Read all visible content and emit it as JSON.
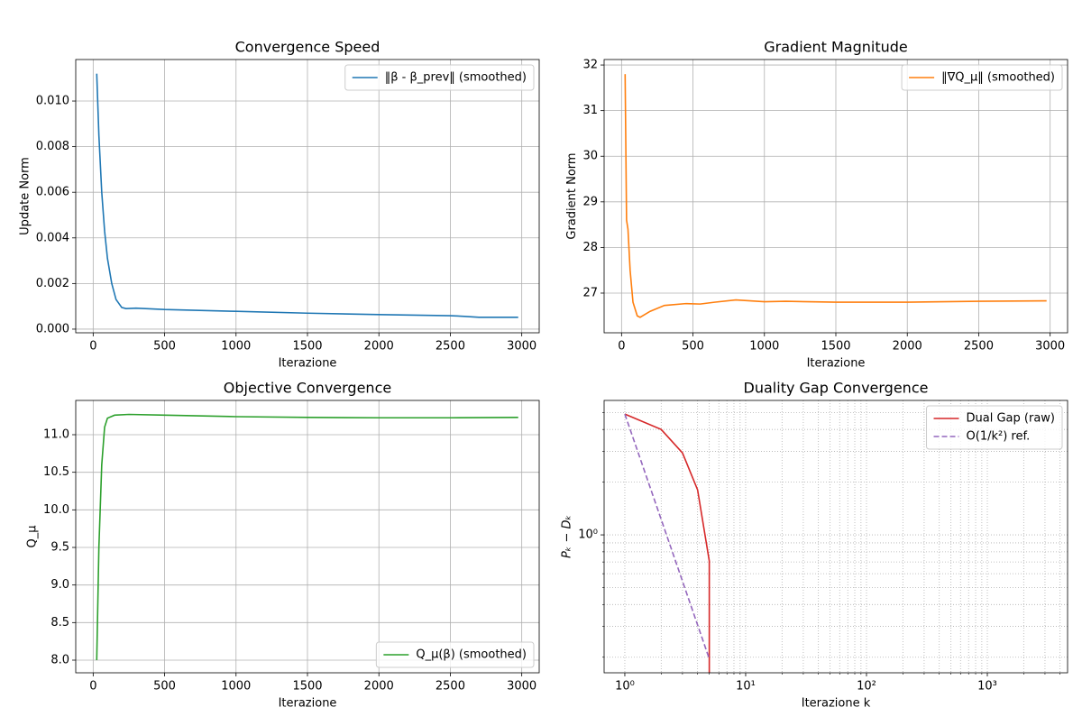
{
  "chart_data": [
    {
      "type": "line",
      "title": "Convergence Speed",
      "x_label": "Iterazione",
      "y_label": "Update Norm",
      "x": [
        25,
        40,
        60,
        80,
        100,
        130,
        160,
        200,
        230,
        300,
        500,
        1000,
        1500,
        2000,
        2500,
        2600,
        2700,
        2975
      ],
      "series": [
        {
          "name": "‖β - β_prev‖ (smoothed)",
          "color": "#1f77b4",
          "values": [
            0.0112,
            0.0085,
            0.006,
            0.0043,
            0.0031,
            0.002,
            0.0013,
            0.00095,
            0.0009,
            0.00092,
            0.00086,
            0.00078,
            0.0007,
            0.00064,
            0.00059,
            0.00056,
            0.00052,
            0.00052
          ]
        }
      ],
      "xlim": [
        -122,
        3122
      ],
      "ylim": [
        -0.00016,
        0.01182
      ],
      "xticks": [
        0,
        500,
        1000,
        1500,
        2000,
        2500,
        3000
      ],
      "yticks": [
        {
          "value": 0,
          "label": "0.000"
        },
        {
          "value": 0.002,
          "label": "0.002"
        },
        {
          "value": 0.004,
          "label": "0.004"
        },
        {
          "value": 0.006,
          "label": "0.006"
        },
        {
          "value": 0.008,
          "label": "0.008"
        },
        {
          "value": 0.01,
          "label": "0.010"
        }
      ],
      "grid": true,
      "legend": "upper right"
    },
    {
      "type": "line",
      "title": "Gradient Magnitude",
      "x_label": "Iterazione",
      "y_label": "Gradient Norm",
      "x": [
        25,
        35,
        45,
        60,
        80,
        110,
        130,
        200,
        300,
        450,
        550,
        650,
        800,
        1000,
        1150,
        1500,
        2000,
        2500,
        2975
      ],
      "series": [
        {
          "name": "‖∇Q_μ‖ (smoothed)",
          "color": "#ff7f0e",
          "values": [
            31.8,
            28.6,
            28.4,
            27.5,
            26.8,
            26.5,
            26.47,
            26.6,
            26.73,
            26.77,
            26.76,
            26.8,
            26.85,
            26.81,
            26.82,
            26.8,
            26.8,
            26.82,
            26.83
          ]
        }
      ],
      "xlim": [
        -122,
        3122
      ],
      "ylim": [
        26.13,
        32.12
      ],
      "xticks": [
        0,
        500,
        1000,
        1500,
        2000,
        2500,
        3000
      ],
      "yticks": [
        27,
        28,
        29,
        30,
        31,
        32
      ],
      "grid": true,
      "legend": "upper right"
    },
    {
      "type": "line",
      "title": "Objective Convergence",
      "x_label": "Iterazione",
      "y_label": "Q_μ",
      "x": [
        25,
        40,
        60,
        80,
        100,
        150,
        250,
        500,
        1000,
        1500,
        2000,
        2500,
        2975
      ],
      "series": [
        {
          "name": "Q_μ(β) (smoothed)",
          "color": "#2ca02c",
          "values": [
            8.0,
            9.5,
            10.6,
            11.1,
            11.22,
            11.26,
            11.27,
            11.26,
            11.24,
            11.23,
            11.225,
            11.225,
            11.23
          ]
        }
      ],
      "xlim": [
        -122,
        3122
      ],
      "ylim": [
        7.832,
        11.456
      ],
      "xticks": [
        0,
        500,
        1000,
        1500,
        2000,
        2500,
        3000
      ],
      "yticks": [
        {
          "value": 8,
          "label": "8.0"
        },
        8.5,
        {
          "value": 9,
          "label": "9.0"
        },
        9.5,
        {
          "value": 10,
          "label": "10.0"
        },
        10.5,
        {
          "value": 11,
          "label": "11.0"
        }
      ],
      "grid": true,
      "legend": "lower right"
    },
    {
      "type": "line",
      "title": "Duality Gap Convergence",
      "x_label": "Iterazione k",
      "y_label": "Pₖ − Dₖ",
      "x": [
        1,
        2,
        3,
        4,
        5,
        5
      ],
      "series": [
        {
          "name": "Dual Gap (raw)",
          "color": "#d62728",
          "values": [
            4.9,
            4.0,
            2.94,
            1.81,
            0.71,
            0.1
          ]
        },
        {
          "name": "O(1/k²) ref.",
          "color": "#9467bd",
          "linestyle": "dashed",
          "values": [
            4.9,
            1.225,
            0.544,
            0.306,
            0.196,
            null
          ]
        }
      ],
      "xscale": "log",
      "yscale": "log",
      "xlim": [
        0.674,
        4614
      ],
      "ylim": [
        0.163,
        5.86
      ],
      "xticks": [
        {
          "value": 1,
          "label": "10⁰"
        },
        {
          "value": 10,
          "label": "10¹"
        },
        {
          "value": 100,
          "label": "10²"
        },
        {
          "value": 1000,
          "label": "10³"
        }
      ],
      "yticks": [
        {
          "value": 1,
          "label": "10⁰"
        }
      ],
      "xminorticks": [
        2,
        3,
        4,
        5,
        6,
        7,
        8,
        9,
        20,
        30,
        40,
        50,
        60,
        70,
        80,
        90,
        200,
        300,
        400,
        500,
        600,
        700,
        800,
        900,
        2000,
        3000,
        4000
      ],
      "yminorticks": [
        0.2,
        0.3,
        0.4,
        0.5,
        0.6,
        0.7,
        0.8,
        0.9,
        2,
        3,
        4,
        5
      ],
      "grid": true,
      "grid_linestyle": "dotted",
      "legend": "upper right"
    }
  ]
}
